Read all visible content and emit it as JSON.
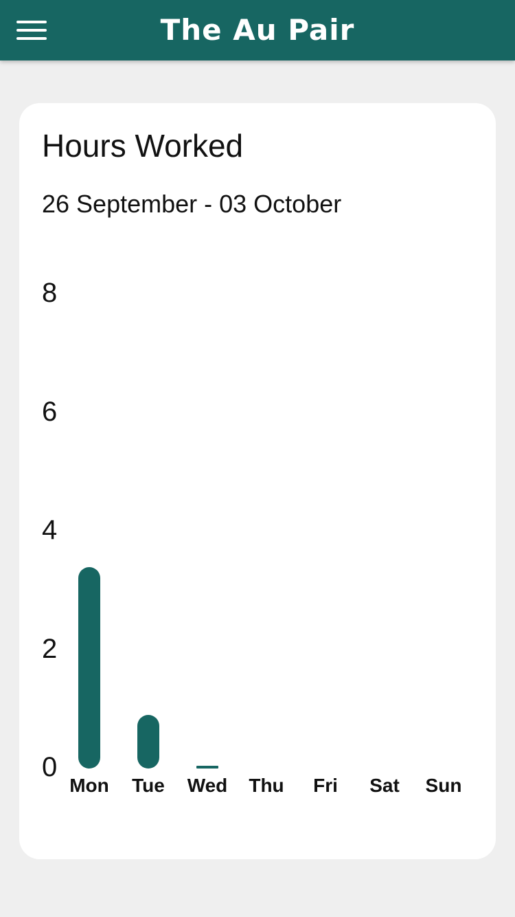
{
  "app": {
    "title": "The Au Pair",
    "menu_icon": "hamburger-menu-icon",
    "brand_color": "#176662",
    "background_color": "#efefef"
  },
  "card": {
    "title": "Hours Worked",
    "date_range": "26 September - 03 October"
  },
  "chart_data": {
    "type": "bar",
    "title": "",
    "xlabel": "",
    "ylabel": "",
    "categories": [
      "Mon",
      "Tue",
      "Wed",
      "Thu",
      "Fri",
      "Sat",
      "Sun"
    ],
    "values": [
      3.4,
      0.9,
      0.05,
      0,
      0,
      0,
      0
    ],
    "ylim": [
      0,
      8
    ],
    "yticks": [
      "0",
      "2",
      "4",
      "6",
      "8"
    ],
    "grid": false,
    "legend": "none",
    "bar_color": "#176662"
  }
}
